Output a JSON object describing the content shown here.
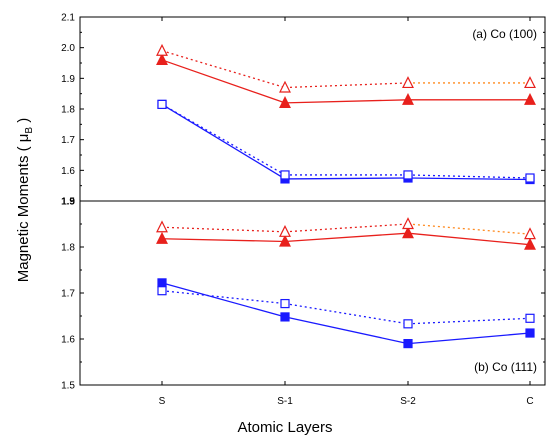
{
  "chart_data": {
    "type": "line",
    "xlabel": "Atomic Layers",
    "ylabel_prefix": "Magnetic Moments ( ",
    "ylabel_mu": "μ",
    "ylabel_sub": "B",
    "ylabel_suffix": " )",
    "categories": [
      "S",
      "S-1",
      "S-2",
      "C"
    ],
    "colors": {
      "red": "#e8201c",
      "blue": "#1a1aff",
      "orange_dotted": "#ff8a1f"
    },
    "panels": [
      {
        "label": "(a) Co (100)",
        "ylim": [
          1.5,
          2.1
        ],
        "yticks": [
          "1.5",
          "1.6",
          "1.7",
          "1.8",
          "1.9",
          "2.0",
          "2.1"
        ],
        "series": [
          {
            "color": "red",
            "marker": "triangle-filled",
            "style": "solid",
            "values": [
              1.96,
              1.82,
              1.83,
              1.83
            ]
          },
          {
            "color": "red",
            "marker": "triangle-open",
            "style": "dotted",
            "values": [
              1.99,
              1.87,
              1.885,
              1.885
            ]
          },
          {
            "color": "blue",
            "marker": "square-filled",
            "style": "solid",
            "values": [
              1.815,
              1.572,
              1.575,
              1.57
            ]
          },
          {
            "color": "blue",
            "marker": "square-open",
            "style": "dotted",
            "values": [
              1.815,
              1.585,
              1.585,
              1.575
            ]
          }
        ]
      },
      {
        "label": "(b) Co (111)",
        "ylim": [
          1.5,
          1.9
        ],
        "yticks": [
          "1.5",
          "1.6",
          "1.7",
          "1.8",
          "1.9"
        ],
        "series": [
          {
            "color": "red",
            "marker": "triangle-filled",
            "style": "solid",
            "values": [
              1.818,
              1.812,
              1.83,
              1.805
            ]
          },
          {
            "color": "red",
            "marker": "triangle-open",
            "style": "dotted",
            "values": [
              1.843,
              1.833,
              1.85,
              1.828
            ]
          },
          {
            "color": "blue",
            "marker": "square-filled",
            "style": "solid",
            "values": [
              1.722,
              1.648,
              1.59,
              1.613
            ]
          },
          {
            "color": "blue",
            "marker": "square-open",
            "style": "dotted",
            "values": [
              1.705,
              1.677,
              1.633,
              1.645
            ]
          }
        ]
      }
    ]
  }
}
